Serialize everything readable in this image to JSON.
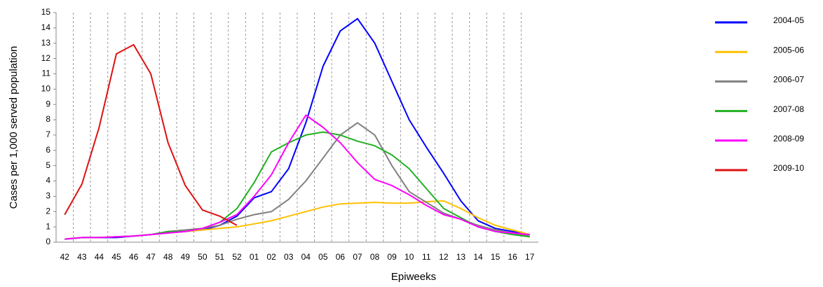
{
  "chart_data": {
    "type": "line",
    "ylabel": "Cases per 1,000 served population",
    "xlabel": "Epiweeks",
    "categories": [
      "42",
      "43",
      "44",
      "45",
      "46",
      "47",
      "48",
      "49",
      "50",
      "51",
      "52",
      "01",
      "02",
      "03",
      "04",
      "05",
      "06",
      "07",
      "08",
      "09",
      "10",
      "11",
      "12",
      "13",
      "14",
      "15",
      "16",
      "17"
    ],
    "ylim": [
      0,
      15
    ],
    "yticks": [
      0,
      1,
      2,
      3,
      4,
      5,
      6,
      7,
      8,
      9,
      10,
      11,
      12,
      13,
      14,
      15
    ],
    "series": [
      {
        "name": "2004-05",
        "color": "#0000ff",
        "values": [
          0.2,
          0.3,
          0.3,
          0.3,
          0.4,
          0.5,
          0.6,
          0.7,
          0.8,
          1.1,
          1.7,
          2.9,
          3.3,
          4.8,
          7.8,
          11.5,
          13.8,
          14.6,
          13,
          10.5,
          8,
          6.2,
          4.5,
          2.7,
          1.4,
          0.9,
          0.7,
          0.5
        ]
      },
      {
        "name": "2005-06",
        "color": "#ffc000",
        "values": [
          0.2,
          0.3,
          0.3,
          0.35,
          0.4,
          0.5,
          0.6,
          0.7,
          0.8,
          0.9,
          1.0,
          1.2,
          1.4,
          1.7,
          2.0,
          2.3,
          2.5,
          2.55,
          2.6,
          2.55,
          2.55,
          2.65,
          2.7,
          2.2,
          1.6,
          1.1,
          0.8,
          0.5
        ]
      },
      {
        "name": "2006-07",
        "color": "#808080",
        "values": [
          0.2,
          0.3,
          0.3,
          0.35,
          0.4,
          0.5,
          0.7,
          0.8,
          0.9,
          1.1,
          1.5,
          1.8,
          2.0,
          2.8,
          4.0,
          5.5,
          7.0,
          7.8,
          7.0,
          5.0,
          3.3,
          2.6,
          1.9,
          1.5,
          1.1,
          0.8,
          0.6,
          0.4
        ]
      },
      {
        "name": "2007-08",
        "color": "#22b022",
        "values": [
          0.2,
          0.3,
          0.3,
          0.35,
          0.4,
          0.5,
          0.7,
          0.7,
          0.9,
          1.3,
          2.2,
          3.9,
          5.9,
          6.5,
          7.0,
          7.2,
          7.0,
          6.6,
          6.3,
          5.7,
          4.8,
          3.5,
          2.2,
          1.6,
          1.0,
          0.7,
          0.5,
          0.35
        ]
      },
      {
        "name": "2008-09",
        "color": "#ff00ff",
        "values": [
          0.2,
          0.3,
          0.3,
          0.35,
          0.4,
          0.5,
          0.6,
          0.7,
          0.9,
          1.3,
          1.8,
          3.0,
          4.4,
          6.5,
          8.3,
          7.5,
          6.5,
          5.2,
          4.1,
          3.7,
          3.1,
          2.4,
          1.8,
          1.5,
          1.0,
          0.7,
          0.6,
          0.5
        ]
      },
      {
        "name": "2009-10",
        "color": "#dd1111",
        "values": [
          1.8,
          3.8,
          7.5,
          12.3,
          12.9,
          11.0,
          6.5,
          3.7,
          2.1,
          1.7,
          1.1,
          null,
          null,
          null,
          null,
          null,
          null,
          null,
          null,
          null,
          null,
          null,
          null,
          null,
          null,
          null,
          null,
          null
        ]
      }
    ]
  }
}
